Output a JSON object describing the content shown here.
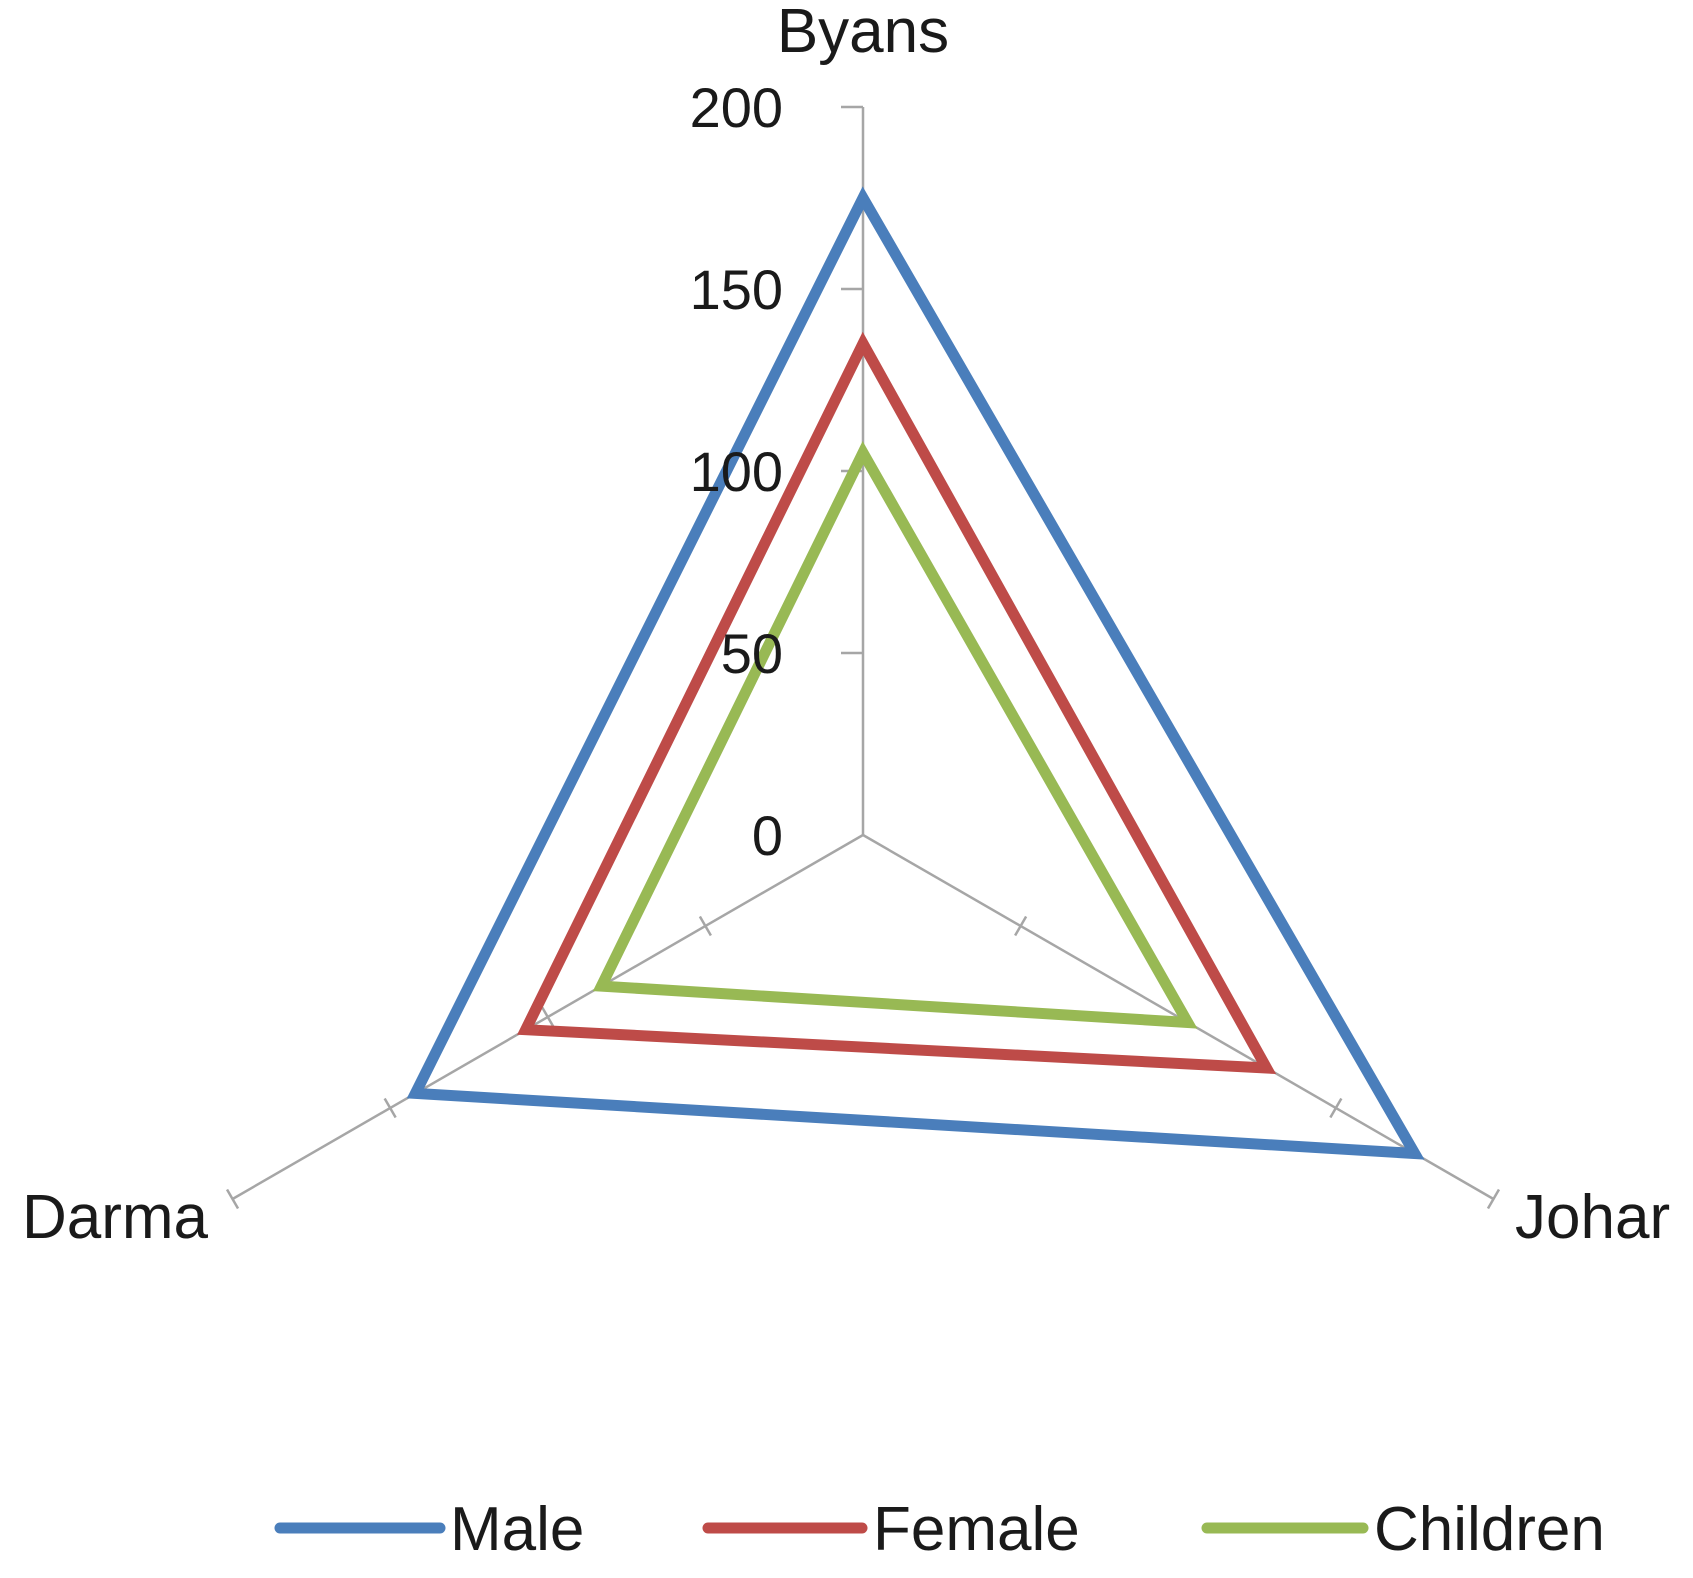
{
  "chart_data": {
    "type": "radar",
    "categories": [
      "Byans",
      "Johar",
      "Darma"
    ],
    "series": [
      {
        "name": "Male",
        "values": [
          175,
          175,
          142
        ],
        "color": "#4a7ebb"
      },
      {
        "name": "Female",
        "values": [
          135,
          128,
          107
        ],
        "color": "#be4b48"
      },
      {
        "name": "Children",
        "values": [
          105,
          103,
          83
        ],
        "color": "#98b954"
      }
    ],
    "rlim": [
      0,
      200
    ],
    "ticks": [
      0,
      50,
      100,
      150,
      200
    ],
    "tick_labels": [
      "0",
      "50",
      "100",
      "150",
      "200"
    ],
    "grid": false,
    "legend_position": "bottom"
  }
}
